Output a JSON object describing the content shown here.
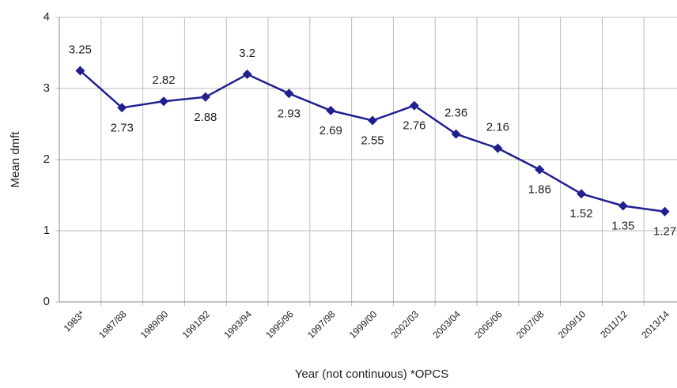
{
  "chart_data": {
    "type": "line",
    "x_label": "Year (not continuous) *OPCS",
    "y_label": "Mean dmft",
    "categories": [
      "1983*",
      "1987/88",
      "1989/90",
      "1991/92",
      "1993/94",
      "1995/96",
      "1997/98",
      "1999/00",
      "2002/03",
      "2003/04",
      "2005/06",
      "2007/08",
      "2009/10",
      "2011/12",
      "2013/14"
    ],
    "series": [
      {
        "name": "Mean dmft",
        "color": "#1f1f8f",
        "values": [
          3.25,
          2.73,
          2.82,
          2.88,
          3.2,
          2.93,
          2.69,
          2.55,
          2.76,
          2.36,
          2.16,
          1.86,
          1.52,
          1.35,
          1.27
        ]
      }
    ],
    "ylim": [
      0,
      4
    ],
    "yticks": [
      0,
      1,
      2,
      3,
      4
    ],
    "grid": true
  }
}
